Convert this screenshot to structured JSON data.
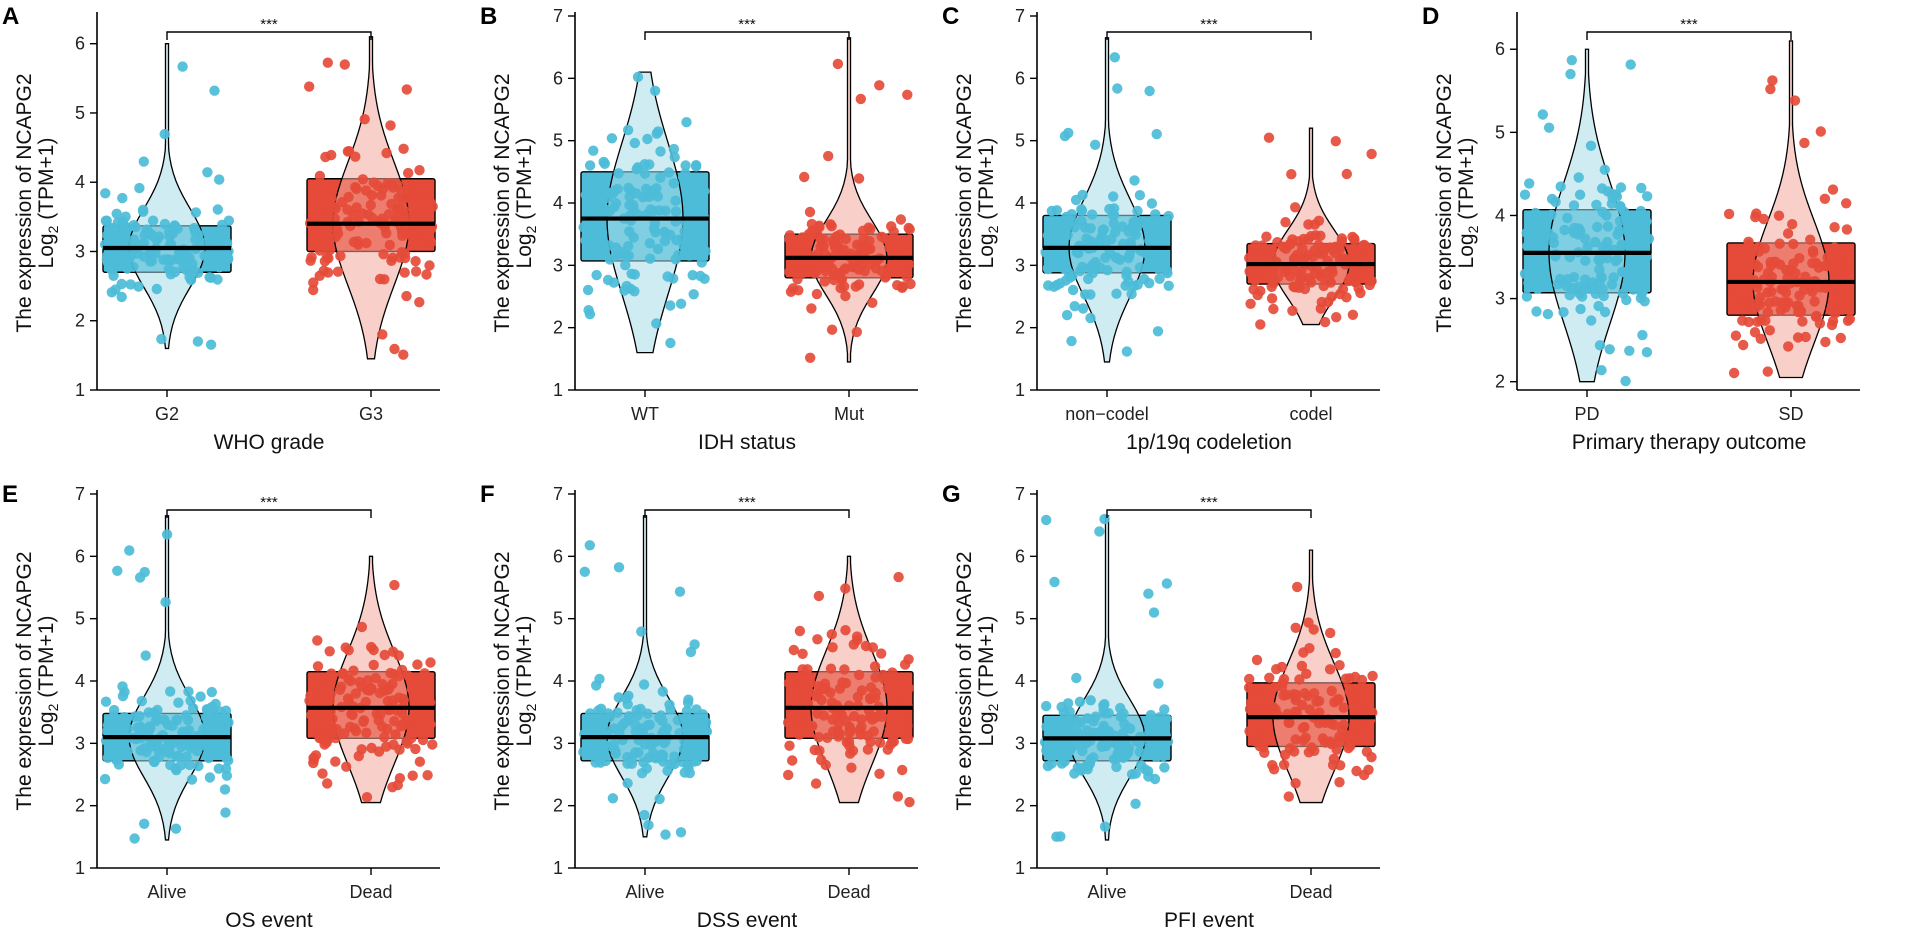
{
  "figure": {
    "ylabel_line1": "The expression of NCAPG2",
    "ylabel_base": "Log",
    "ylabel_sub": "2",
    "ylabel_tail": " (TPM+1)"
  },
  "colors": {
    "group1": "#4cbcd8",
    "group2": "#e54b38",
    "group1_light": "#a9dcea",
    "group2_light": "#f4a79c"
  },
  "chart_data": [
    {
      "letter": "A",
      "type": "box-violin-jitter",
      "xlabel": "WHO grade",
      "categories": [
        "G2",
        "G3"
      ],
      "ylim": [
        1,
        6.4
      ],
      "yticks": [
        1,
        2,
        3,
        4,
        5,
        6
      ],
      "significance": "***",
      "groups": [
        {
          "name": "G2",
          "q1": 2.7,
          "median": 3.05,
          "q3": 3.37,
          "min": 1.6,
          "max": 6.0
        },
        {
          "name": "G3",
          "q1": 3.0,
          "median": 3.4,
          "q3": 4.05,
          "min": 1.45,
          "max": 6.1
        }
      ]
    },
    {
      "letter": "B",
      "type": "box-violin-jitter",
      "xlabel": "IDH status",
      "categories": [
        "WT",
        "Mut"
      ],
      "ylim": [
        1,
        7
      ],
      "yticks": [
        1,
        2,
        3,
        4,
        5,
        6,
        7
      ],
      "significance": "***",
      "groups": [
        {
          "name": "WT",
          "q1": 3.07,
          "median": 3.75,
          "q3": 4.5,
          "min": 1.6,
          "max": 6.1
        },
        {
          "name": "Mut",
          "q1": 2.8,
          "median": 3.12,
          "q3": 3.5,
          "min": 1.45,
          "max": 6.65
        }
      ]
    },
    {
      "letter": "C",
      "type": "box-violin-jitter",
      "xlabel": "1p/19q codeletion",
      "categories": [
        "non−codel",
        "codel"
      ],
      "ylim": [
        1,
        7
      ],
      "yticks": [
        1,
        2,
        3,
        4,
        5,
        6,
        7
      ],
      "significance": "***",
      "groups": [
        {
          "name": "non−codel",
          "q1": 2.88,
          "median": 3.28,
          "q3": 3.8,
          "min": 1.45,
          "max": 6.65
        },
        {
          "name": "codel",
          "q1": 2.7,
          "median": 3.02,
          "q3": 3.35,
          "min": 2.05,
          "max": 5.2
        }
      ]
    },
    {
      "letter": "D",
      "type": "box-violin-jitter",
      "xlabel": "Primary therapy outcome",
      "categories": [
        "PD",
        "SD"
      ],
      "ylim": [
        1.9,
        6.4
      ],
      "yticks": [
        2,
        3,
        4,
        5,
        6
      ],
      "significance": "***",
      "groups": [
        {
          "name": "PD",
          "q1": 3.07,
          "median": 3.55,
          "q3": 4.07,
          "min": 2.0,
          "max": 6.0
        },
        {
          "name": "SD",
          "q1": 2.8,
          "median": 3.2,
          "q3": 3.67,
          "min": 2.05,
          "max": 6.1
        }
      ]
    },
    {
      "letter": "E",
      "type": "box-violin-jitter",
      "xlabel": "OS event",
      "categories": [
        "Alive",
        "Dead"
      ],
      "ylim": [
        1,
        7
      ],
      "yticks": [
        1,
        2,
        3,
        4,
        5,
        6,
        7
      ],
      "significance": "***",
      "groups": [
        {
          "name": "Alive",
          "q1": 2.72,
          "median": 3.1,
          "q3": 3.48,
          "min": 1.45,
          "max": 6.65
        },
        {
          "name": "Dead",
          "q1": 3.08,
          "median": 3.57,
          "q3": 4.15,
          "min": 2.05,
          "max": 6.0
        }
      ]
    },
    {
      "letter": "F",
      "type": "box-violin-jitter",
      "xlabel": "DSS event",
      "categories": [
        "Alive",
        "Dead"
      ],
      "ylim": [
        1,
        7
      ],
      "yticks": [
        1,
        2,
        3,
        4,
        5,
        6,
        7
      ],
      "significance": "***",
      "groups": [
        {
          "name": "Alive",
          "q1": 2.72,
          "median": 3.1,
          "q3": 3.48,
          "min": 1.5,
          "max": 6.65
        },
        {
          "name": "Dead",
          "q1": 3.08,
          "median": 3.57,
          "q3": 4.15,
          "min": 2.05,
          "max": 6.0
        }
      ]
    },
    {
      "letter": "G",
      "type": "box-violin-jitter",
      "xlabel": "PFI event",
      "categories": [
        "Alive",
        "Dead"
      ],
      "ylim": [
        1,
        7
      ],
      "yticks": [
        1,
        2,
        3,
        4,
        5,
        6,
        7
      ],
      "significance": "***",
      "groups": [
        {
          "name": "Alive",
          "q1": 2.72,
          "median": 3.08,
          "q3": 3.45,
          "min": 1.45,
          "max": 6.65
        },
        {
          "name": "Dead",
          "q1": 2.95,
          "median": 3.42,
          "q3": 3.97,
          "min": 2.05,
          "max": 6.1
        }
      ]
    }
  ]
}
